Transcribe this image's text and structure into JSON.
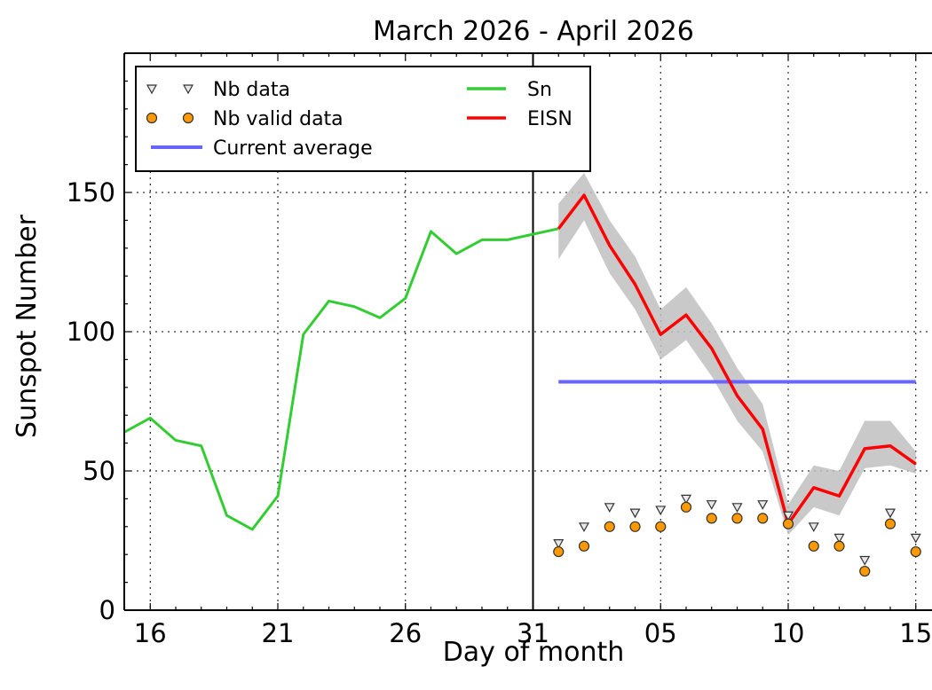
{
  "chart_data": {
    "type": "line",
    "title": "March 2026 - April 2026",
    "xlabel": "Day of month",
    "ylabel": "Sunspot Number",
    "ylim": [
      0,
      200
    ],
    "grid": true,
    "legend_position": "top-left",
    "x_tick_labels": [
      {
        "day_index": 1,
        "label": "16"
      },
      {
        "day_index": 6,
        "label": "21"
      },
      {
        "day_index": 11,
        "label": "26"
      },
      {
        "day_index": 16,
        "label": "31"
      },
      {
        "day_index": 21,
        "label": "05"
      },
      {
        "day_index": 26,
        "label": "10"
      },
      {
        "day_index": 31,
        "label": "15"
      }
    ],
    "y_ticks": [
      0,
      50,
      100,
      150
    ],
    "divider_day_index": 16,
    "series": [
      {
        "name": "Sn",
        "color": "#33cc33",
        "x": [
          0,
          1,
          2,
          3,
          4,
          5,
          6,
          7,
          8,
          9,
          10,
          11,
          12,
          13,
          14,
          15,
          16,
          17
        ],
        "values": [
          64,
          69,
          61,
          59,
          34,
          29,
          41,
          99,
          111,
          109,
          105,
          112,
          136,
          128,
          133,
          133,
          135,
          137
        ]
      },
      {
        "name": "EISN",
        "color": "#ff0000",
        "x": [
          17,
          18,
          19,
          20,
          21,
          22,
          23,
          24,
          25,
          26,
          27,
          28,
          29,
          30,
          31
        ],
        "values": [
          137,
          149,
          131,
          117,
          99,
          106,
          94,
          77,
          65,
          31,
          44,
          41,
          58,
          59,
          52.5
        ],
        "band_upper": [
          146,
          157,
          140,
          127,
          108,
          116,
          103,
          87,
          74,
          38,
          52,
          50,
          68,
          68,
          57
        ],
        "band_lower": [
          126,
          140,
          121,
          108,
          90,
          97,
          84,
          68,
          57,
          27,
          37,
          34,
          51,
          52,
          49
        ]
      },
      {
        "name": "Current average",
        "color": "#6666ff",
        "x_start": 17,
        "x_end": 31,
        "value": 82
      },
      {
        "name": "Nb data",
        "marker": "triangle-down",
        "x": [
          17,
          18,
          19,
          20,
          21,
          22,
          23,
          24,
          25,
          26,
          27,
          28,
          29,
          30,
          31
        ],
        "values": [
          24,
          30,
          37,
          35,
          36,
          40,
          38,
          37,
          38,
          34,
          30,
          26,
          18,
          35,
          26
        ]
      },
      {
        "name": "Nb valid data",
        "marker": "circle",
        "color": "#ff9900",
        "x": [
          17,
          18,
          19,
          20,
          21,
          22,
          23,
          24,
          25,
          26,
          27,
          28,
          29,
          30,
          31
        ],
        "values": [
          21,
          23,
          30,
          30,
          30,
          37,
          33,
          33,
          33,
          31,
          23,
          23,
          14,
          31,
          21
        ]
      }
    ],
    "legend": [
      {
        "label": "Nb data",
        "kind": "triangle"
      },
      {
        "label": "Nb valid data",
        "kind": "circle"
      },
      {
        "label": "Current average",
        "kind": "line",
        "color": "#6666ff"
      },
      {
        "label": "Sn",
        "kind": "line",
        "color": "#33cc33"
      },
      {
        "label": "EISN",
        "kind": "line",
        "color": "#ff0000"
      }
    ]
  }
}
